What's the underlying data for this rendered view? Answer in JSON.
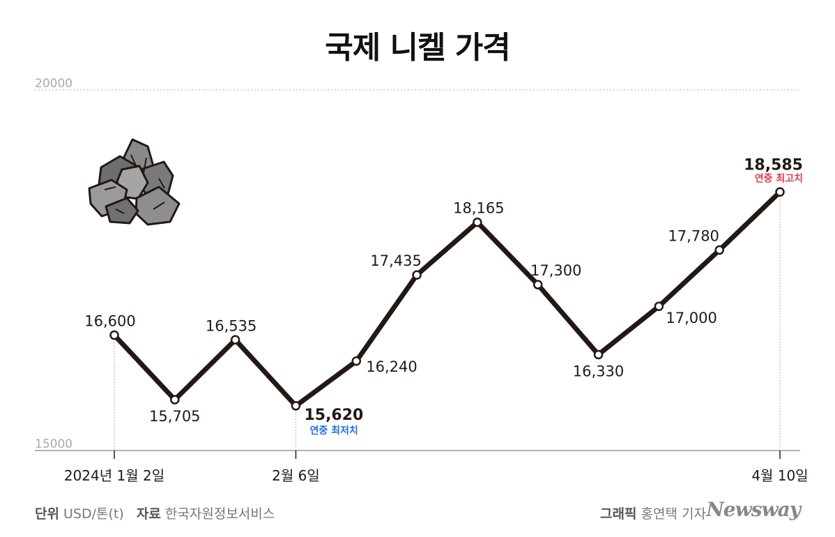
{
  "title": "국제 니켈 가격",
  "chart_data": {
    "type": "line",
    "title": "국제 니켈 가격",
    "ylim": [
      15000,
      20000
    ],
    "y_tick_labels": [
      "20000",
      "15000"
    ],
    "x_tick_labels": [
      {
        "index": 0,
        "label": "2024년 1월 2일"
      },
      {
        "index": 3,
        "label": "2월 6일"
      },
      {
        "index": 11,
        "label": "4월 10일"
      }
    ],
    "series": [
      {
        "values": [
          16600,
          15705,
          16535,
          15620,
          16240,
          17435,
          18165,
          17300,
          16330,
          17000,
          17780,
          18585
        ]
      }
    ],
    "data_labels": [
      "16,600",
      "15,705",
      "16,535",
      "15,620",
      "16,240",
      "17,435",
      "18,165",
      "17,300",
      "16,330",
      "17,000",
      "17,780",
      "18,585"
    ],
    "annotations": [
      {
        "index": 3,
        "text": "연중 최저치",
        "color": "#1e6fe0"
      },
      {
        "index": 11,
        "text": "연중 최고치",
        "color": "#e23a4e"
      }
    ],
    "line_color": "#231815",
    "grid": false
  },
  "footer": {
    "unit_label": "단위",
    "unit_value": "USD/톤(t)",
    "source_label": "자료",
    "source_value": "한국자원정보서비스",
    "graphic_label": "그래픽",
    "graphic_value": "홍연택 기자",
    "logo": "Newsway"
  }
}
